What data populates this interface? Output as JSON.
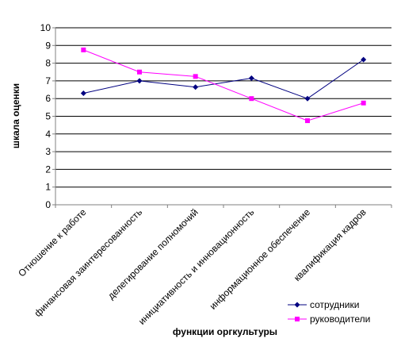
{
  "chart_data": {
    "type": "line",
    "title": "",
    "xlabel": "функции оргкультуры",
    "ylabel": "шкала оценки",
    "ylim": [
      0,
      10
    ],
    "yticks": [
      "0",
      "1",
      "2",
      "3",
      "4",
      "5",
      "6",
      "7",
      "8",
      "9",
      "10"
    ],
    "grid": true,
    "legend_position": "bottom-right",
    "categories": [
      "Отношение к работе",
      "финансовая заинтересованность",
      "делегирование полномочий",
      "инициативность и инновационность",
      "информационное обеспечение",
      "квалификация кадров"
    ],
    "series": [
      {
        "name": "сотрудники",
        "color": "#000080",
        "marker": "diamond",
        "values": [
          6.3,
          7.0,
          6.65,
          7.15,
          6.0,
          8.2
        ]
      },
      {
        "name": "руководители",
        "color": "#ff00ff",
        "marker": "square",
        "values": [
          8.75,
          7.5,
          7.25,
          6.0,
          4.75,
          5.75
        ]
      }
    ]
  }
}
